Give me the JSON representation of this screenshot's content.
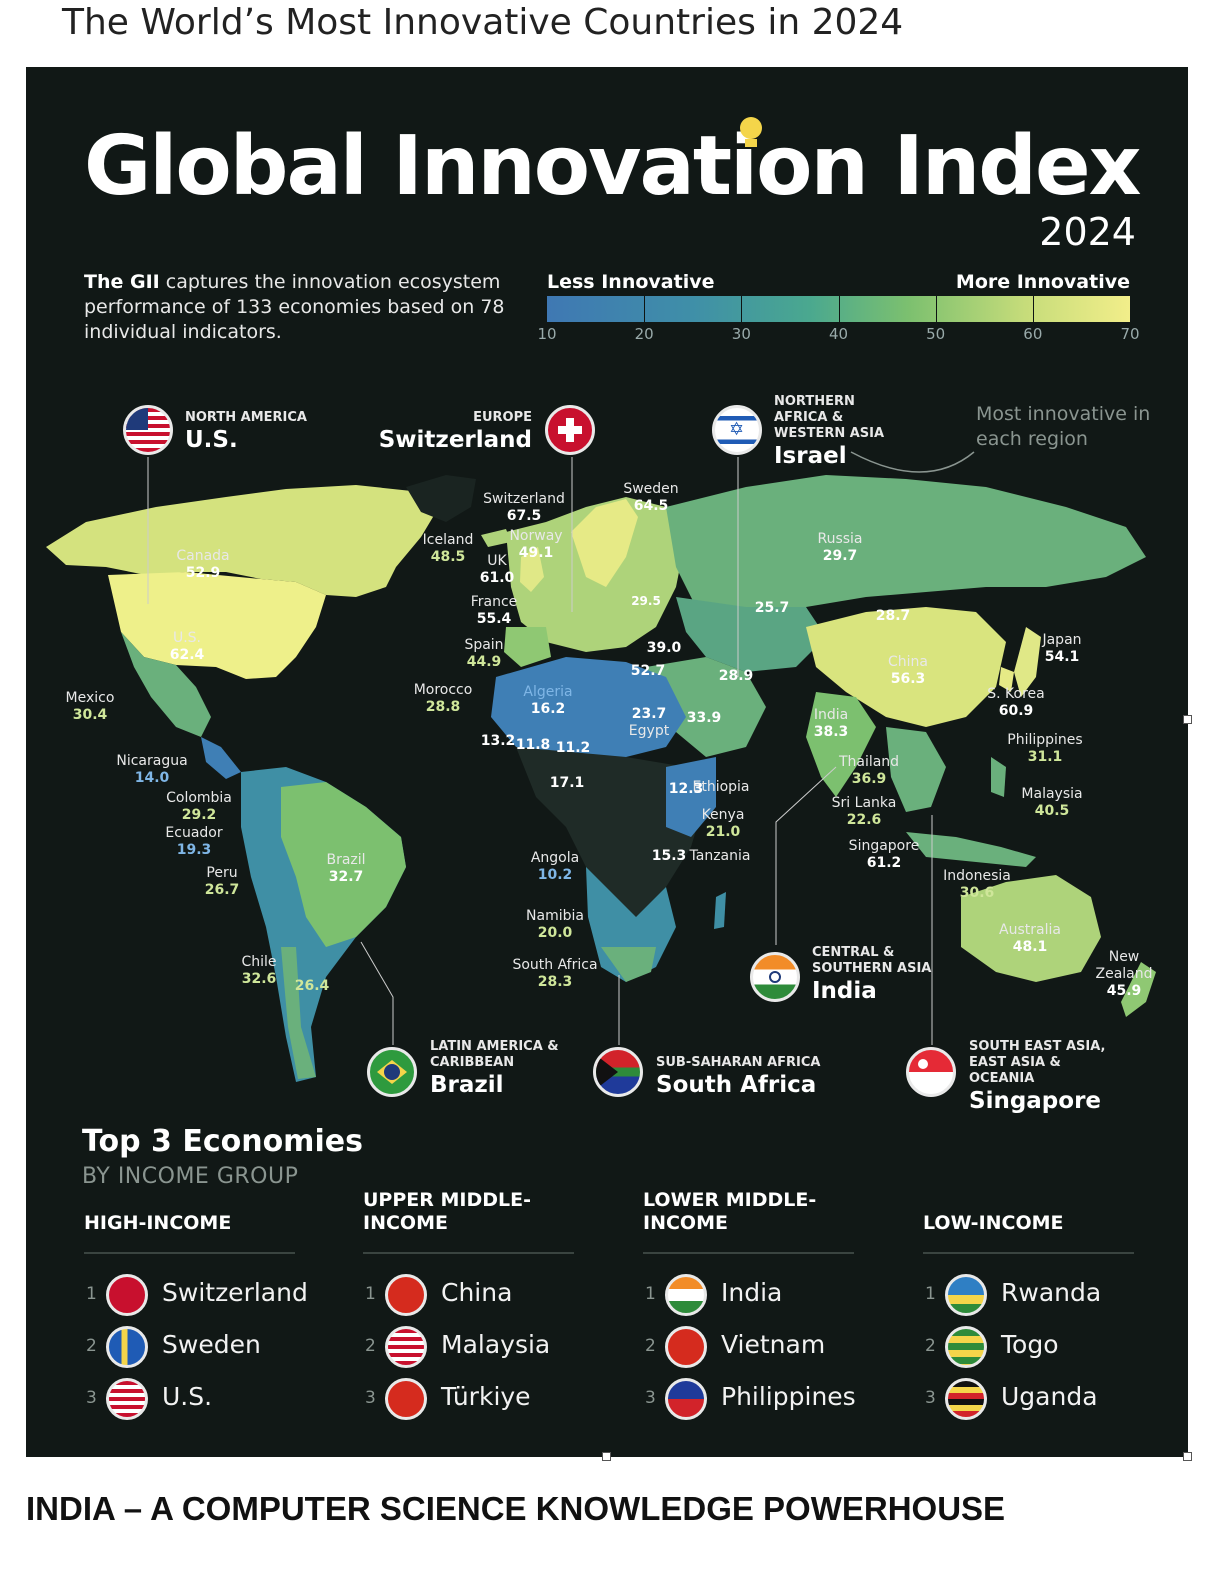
{
  "page_title": "The World’s Most Innovative Countries in 2024",
  "footer": "INDIA – A COMPUTER SCIENCE KNOWLEDGE POWERHOUSE",
  "infographic": {
    "title": "Global Innovation Index",
    "year": "2024",
    "description_bold": "The GII",
    "description_rest": " captures the innovation ecosystem performance of 133 economies based on 78 individual indicators.",
    "scale_less": "Less Innovative",
    "scale_more": "More Innovative",
    "scale_ticks": [
      "10",
      "20",
      "30",
      "40",
      "50",
      "60",
      "70"
    ],
    "note": "Most innovative in each region"
  },
  "regions": [
    {
      "region": "NORTH AMERICA",
      "country": "U.S.",
      "flag": "us-flag"
    },
    {
      "region": "EUROPE",
      "country": "Switzerland",
      "flag": "swiss-flag"
    },
    {
      "region": "NORTHERN AFRICA & WESTERN ASIA",
      "country": "Israel",
      "flag": "israel-flag"
    },
    {
      "region": "CENTRAL & SOUTHERN ASIA",
      "country": "India",
      "flag": "india-flag"
    },
    {
      "region": "LATIN AMERICA & CARIBBEAN",
      "country": "Brazil",
      "flag": "brazil-flag"
    },
    {
      "region": "SUB-SAHARAN AFRICA",
      "country": "South Africa",
      "flag": "south-africa-flag"
    },
    {
      "region": "SOUTH EAST ASIA, EAST ASIA & OCEANIA",
      "country": "Singapore",
      "flag": "singapore-flag"
    }
  ],
  "map_values": [
    {
      "name": "Canada",
      "value": "52.9"
    },
    {
      "name": "U.S.",
      "value": "62.4"
    },
    {
      "name": "Mexico",
      "value": "30.4"
    },
    {
      "name": "Nicaragua",
      "value": "14.0"
    },
    {
      "name": "Colombia",
      "value": "29.2"
    },
    {
      "name": "Ecuador",
      "value": "19.3"
    },
    {
      "name": "Peru",
      "value": "26.7"
    },
    {
      "name": "Brazil",
      "value": "32.7"
    },
    {
      "name": "Chile",
      "value": "32.6"
    },
    {
      "name": "",
      "value": "26.4"
    },
    {
      "name": "Iceland",
      "value": "48.5"
    },
    {
      "name": "UK",
      "value": "61.0"
    },
    {
      "name": "Switzerland",
      "value": "67.5"
    },
    {
      "name": "Norway",
      "value": "49.1"
    },
    {
      "name": "Sweden",
      "value": "64.5"
    },
    {
      "name": "France",
      "value": "55.4"
    },
    {
      "name": "Spain",
      "value": "44.9"
    },
    {
      "name": "Morocco",
      "value": "28.8"
    },
    {
      "name": "Algeria",
      "value": "16.2"
    },
    {
      "name": "",
      "value": "13.2"
    },
    {
      "name": "",
      "value": "11.8"
    },
    {
      "name": "",
      "value": "11.2"
    },
    {
      "name": "",
      "value": "17.1"
    },
    {
      "name": "",
      "value": "29.5"
    },
    {
      "name": "",
      "value": "39.0"
    },
    {
      "name": "",
      "value": "52.7"
    },
    {
      "name": "Egypt",
      "value": "23.7"
    },
    {
      "name": "",
      "value": "33.9"
    },
    {
      "name": "",
      "value": "28.9"
    },
    {
      "name": "",
      "value": "25.7"
    },
    {
      "name": "",
      "value": "28.7"
    },
    {
      "name": "Russia",
      "value": "29.7"
    },
    {
      "name": "China",
      "value": "56.3"
    },
    {
      "name": "Japan",
      "value": "54.1"
    },
    {
      "name": "S. Korea",
      "value": "60.9"
    },
    {
      "name": "Philippines",
      "value": "31.1"
    },
    {
      "name": "India",
      "value": "38.3"
    },
    {
      "name": "Thailand",
      "value": "36.9"
    },
    {
      "name": "Sri Lanka",
      "value": "22.6"
    },
    {
      "name": "Malaysia",
      "value": "40.5"
    },
    {
      "name": "Singapore",
      "value": "61.2"
    },
    {
      "name": "Indonesia",
      "value": "30.6"
    },
    {
      "name": "Ethiopia",
      "value": "12.3"
    },
    {
      "name": "Kenya",
      "value": "21.0"
    },
    {
      "name": "Tanzania",
      "value": "15.3"
    },
    {
      "name": "Angola",
      "value": "10.2"
    },
    {
      "name": "Namibia",
      "value": "20.0"
    },
    {
      "name": "South Africa",
      "value": "28.3"
    },
    {
      "name": "Australia",
      "value": "48.1"
    },
    {
      "name": "New Zealand",
      "value": "45.9"
    }
  ],
  "top3": {
    "title": "Top 3 Economies",
    "subtitle": "BY INCOME GROUP",
    "groups": [
      {
        "heading": "HIGH-INCOME",
        "items": [
          {
            "rank": "1",
            "name": "Switzerland"
          },
          {
            "rank": "2",
            "name": "Sweden"
          },
          {
            "rank": "3",
            "name": "U.S."
          }
        ]
      },
      {
        "heading": "UPPER MIDDLE-INCOME",
        "items": [
          {
            "rank": "1",
            "name": "China"
          },
          {
            "rank": "2",
            "name": "Malaysia"
          },
          {
            "rank": "3",
            "name": "Türkiye"
          }
        ]
      },
      {
        "heading": "LOWER MIDDLE-INCOME",
        "items": [
          {
            "rank": "1",
            "name": "India"
          },
          {
            "rank": "2",
            "name": "Vietnam"
          },
          {
            "rank": "3",
            "name": "Philippines"
          }
        ]
      },
      {
        "heading": "LOW-INCOME",
        "items": [
          {
            "rank": "1",
            "name": "Rwanda"
          },
          {
            "rank": "2",
            "name": "Togo"
          },
          {
            "rank": "3",
            "name": "Uganda"
          }
        ]
      }
    ]
  }
}
